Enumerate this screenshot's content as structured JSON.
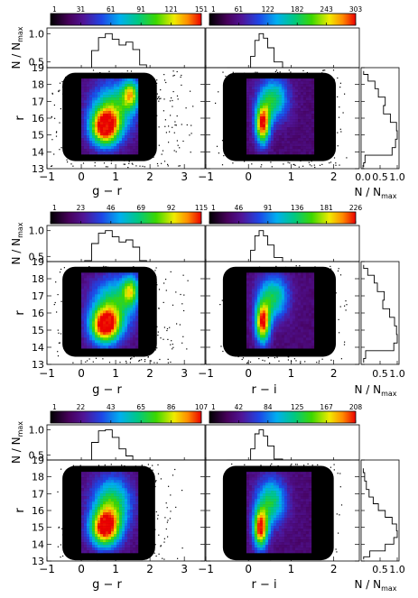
{
  "chart_data": {
    "type": "heatmap",
    "axis_labels": {
      "y_top": "N / N",
      "y_top_sub": "max",
      "y_main": "r",
      "x_right": "N / N",
      "x_right_sub": "max"
    },
    "y_top_ticks": [
      "0.5",
      "1.0"
    ],
    "y_top_ticks_vals": [
      0.5,
      1.0
    ],
    "y_ticks": [
      "13",
      "14",
      "15",
      "16",
      "17",
      "18",
      "19"
    ],
    "y_range": [
      13,
      19
    ],
    "rows": [
      {
        "panels": [
          {
            "xlabel": "g − r",
            "x_range": [
              -1,
              3.6
            ],
            "x_ticks": [
              "−1",
              "0",
              "1",
              "2",
              "3"
            ],
            "x_tick_vals": [
              -1,
              0,
              1,
              2,
              3
            ],
            "colorbar_ticks": [
              "1",
              "31",
              "61",
              "91",
              "121",
              "151"
            ],
            "colorbar_max": 151,
            "hist_x": [
              -0.6,
              -0.3,
              0,
              0.2,
              0.4,
              0.6,
              0.8,
              1.0,
              1.2,
              1.4,
              1.6,
              1.8,
              2.0,
              2.3,
              2.6,
              3.0
            ],
            "hist_y": [
              0.0,
              0.03,
              0.15,
              0.4,
              0.7,
              0.93,
              1.0,
              0.9,
              0.8,
              0.85,
              0.72,
              0.45,
              0.22,
              0.08,
              0.02,
              0.0
            ],
            "density": [
              {
                "x": 0.65,
                "y": 15.5,
                "sx": 0.3,
                "sy": 0.75,
                "w": 1.0
              },
              {
                "x": 1.4,
                "y": 17.5,
                "sx": 0.18,
                "sy": 0.6,
                "w": 0.65
              },
              {
                "x": 0.9,
                "y": 16.7,
                "sx": 0.45,
                "sy": 1.1,
                "w": 0.55
              }
            ],
            "core": {
              "x0": 0.0,
              "x1": 1.65,
              "y0": 14.0,
              "y1": 18.35
            },
            "halo": {
              "x0": -0.9,
              "x1": 3.4,
              "y0": 13.1,
              "y1": 18.9
            }
          },
          {
            "xlabel": "",
            "x_range": [
              -1,
              2.6
            ],
            "x_ticks": [
              "−1",
              "0",
              "1",
              "2"
            ],
            "x_tick_vals": [
              -1,
              0,
              1,
              2
            ],
            "colorbar_ticks": [
              "1",
              "61",
              "122",
              "182",
              "243",
              "303"
            ],
            "colorbar_max": 303,
            "hist_x": [
              -0.5,
              -0.2,
              0,
              0.1,
              0.2,
              0.3,
              0.4,
              0.5,
              0.7,
              0.9,
              1.1,
              1.3,
              1.6,
              2.0,
              2.4
            ],
            "hist_y": [
              0.0,
              0.05,
              0.3,
              0.6,
              0.88,
              1.0,
              0.92,
              0.75,
              0.5,
              0.32,
              0.18,
              0.1,
              0.04,
              0.01,
              0.0
            ],
            "density": [
              {
                "x": 0.3,
                "y": 15.7,
                "sx": 0.12,
                "sy": 0.8,
                "w": 1.0
              },
              {
                "x": 0.55,
                "y": 17.2,
                "sx": 0.25,
                "sy": 0.9,
                "w": 0.55
              }
            ],
            "core": {
              "x0": -0.05,
              "x1": 1.5,
              "y0": 14.0,
              "y1": 18.35
            },
            "halo": {
              "x0": -0.8,
              "x1": 2.3,
              "y0": 13.1,
              "y1": 18.9
            }
          }
        ],
        "side_hist_ticks": [
          "0.0",
          "0.5",
          "1.0"
        ],
        "side_hist_tick_vals": [
          0.0,
          0.5,
          1.0
        ],
        "side_hist_r": [
          13.1,
          13.6,
          14.0,
          14.5,
          15.0,
          15.5,
          16.0,
          16.5,
          17.0,
          17.5,
          18.0,
          18.4,
          18.8
        ],
        "side_hist_n": [
          0.02,
          0.06,
          0.85,
          0.95,
          1.0,
          0.98,
          0.8,
          0.6,
          0.65,
          0.45,
          0.35,
          0.15,
          0.02
        ]
      },
      {
        "panels": [
          {
            "xlabel": "g − r",
            "x_range": [
              -1,
              3.6
            ],
            "x_ticks": [
              "−1",
              "0",
              "1",
              "2",
              "3"
            ],
            "x_tick_vals": [
              -1,
              0,
              1,
              2,
              3
            ],
            "colorbar_ticks": [
              "1",
              "23",
              "46",
              "69",
              "92",
              "115"
            ],
            "colorbar_max": 115,
            "hist_x": [
              -0.6,
              -0.3,
              0,
              0.2,
              0.4,
              0.6,
              0.8,
              1.0,
              1.2,
              1.4,
              1.6,
              1.8,
              2.0,
              2.3,
              2.6,
              3.0
            ],
            "hist_y": [
              0.0,
              0.03,
              0.15,
              0.42,
              0.75,
              0.95,
              1.0,
              0.88,
              0.78,
              0.82,
              0.68,
              0.42,
              0.2,
              0.07,
              0.02,
              0.0
            ],
            "density": [
              {
                "x": 0.65,
                "y": 15.3,
                "sx": 0.3,
                "sy": 0.7,
                "w": 1.0
              },
              {
                "x": 1.4,
                "y": 17.4,
                "sx": 0.18,
                "sy": 0.6,
                "w": 0.6
              },
              {
                "x": 0.9,
                "y": 16.6,
                "sx": 0.45,
                "sy": 1.1,
                "w": 0.55
              }
            ],
            "core": {
              "x0": 0.0,
              "x1": 1.65,
              "y0": 14.0,
              "y1": 18.35
            },
            "halo": {
              "x0": -0.8,
              "x1": 3.2,
              "y0": 13.1,
              "y1": 18.8
            }
          },
          {
            "xlabel": "r − i",
            "x_range": [
              -1,
              2.6
            ],
            "x_ticks": [
              "−1",
              "0",
              "1",
              "2"
            ],
            "x_tick_vals": [
              -1,
              0,
              1,
              2
            ],
            "colorbar_ticks": [
              "1",
              "46",
              "91",
              "136",
              "181",
              "226"
            ],
            "colorbar_max": 226,
            "hist_x": [
              -0.5,
              -0.2,
              0,
              0.1,
              0.2,
              0.3,
              0.4,
              0.5,
              0.7,
              0.9,
              1.1,
              1.3,
              1.6,
              2.0,
              2.4
            ],
            "hist_y": [
              0.0,
              0.05,
              0.32,
              0.62,
              0.9,
              1.0,
              0.9,
              0.72,
              0.48,
              0.3,
              0.17,
              0.09,
              0.04,
              0.01,
              0.0
            ],
            "density": [
              {
                "x": 0.3,
                "y": 15.5,
                "sx": 0.12,
                "sy": 0.8,
                "w": 1.0
              },
              {
                "x": 0.55,
                "y": 17.0,
                "sx": 0.25,
                "sy": 0.9,
                "w": 0.55
              }
            ],
            "core": {
              "x0": -0.05,
              "x1": 1.5,
              "y0": 14.0,
              "y1": 18.35
            },
            "halo": {
              "x0": -0.7,
              "x1": 2.3,
              "y0": 13.1,
              "y1": 18.8
            }
          }
        ],
        "side_hist_ticks": [
          "0.5",
          "1.0"
        ],
        "side_hist_tick_vals": [
          0.5,
          1.0
        ],
        "side_hist_r": [
          13.1,
          13.6,
          14.0,
          14.5,
          15.0,
          15.5,
          16.0,
          16.5,
          17.0,
          17.5,
          18.0,
          18.4,
          18.8
        ],
        "side_hist_n": [
          0.02,
          0.08,
          0.9,
          1.0,
          0.98,
          0.92,
          0.78,
          0.58,
          0.62,
          0.42,
          0.33,
          0.14,
          0.02
        ]
      },
      {
        "panels": [
          {
            "xlabel": "g − r",
            "x_range": [
              -1,
              3.6
            ],
            "x_ticks": [
              "−1",
              "0",
              "1",
              "2",
              "3"
            ],
            "x_tick_vals": [
              -1,
              0,
              1,
              2,
              3
            ],
            "colorbar_ticks": [
              "1",
              "22",
              "43",
              "65",
              "86",
              "107"
            ],
            "colorbar_max": 107,
            "hist_x": [
              -0.6,
              -0.3,
              0,
              0.2,
              0.4,
              0.6,
              0.8,
              1.0,
              1.2,
              1.4,
              1.6,
              1.8,
              2.0,
              2.3,
              2.6,
              3.0
            ],
            "hist_y": [
              0.0,
              0.03,
              0.12,
              0.38,
              0.75,
              0.98,
              1.0,
              0.85,
              0.62,
              0.48,
              0.35,
              0.22,
              0.12,
              0.05,
              0.02,
              0.0
            ],
            "density": [
              {
                "x": 0.65,
                "y": 15.0,
                "sx": 0.3,
                "sy": 0.75,
                "w": 1.0
              },
              {
                "x": 0.85,
                "y": 16.5,
                "sx": 0.4,
                "sy": 1.1,
                "w": 0.6
              }
            ],
            "core": {
              "x0": 0.0,
              "x1": 1.6,
              "y0": 13.6,
              "y1": 18.3
            },
            "halo": {
              "x0": -0.7,
              "x1": 3.0,
              "y0": 13.1,
              "y1": 18.8
            }
          },
          {
            "xlabel": "r − i",
            "x_range": [
              -1,
              2.6
            ],
            "x_ticks": [
              "−1",
              "0",
              "1",
              "2"
            ],
            "x_tick_vals": [
              -1,
              0,
              1,
              2
            ],
            "colorbar_ticks": [
              "1",
              "42",
              "84",
              "125",
              "167",
              "208"
            ],
            "colorbar_max": 208,
            "hist_x": [
              -0.5,
              -0.2,
              0,
              0.1,
              0.2,
              0.3,
              0.4,
              0.5,
              0.7,
              0.9,
              1.1,
              1.3,
              1.6,
              2.0,
              2.4
            ],
            "hist_y": [
              0.0,
              0.04,
              0.3,
              0.62,
              0.92,
              1.0,
              0.88,
              0.68,
              0.42,
              0.25,
              0.13,
              0.07,
              0.03,
              0.01,
              0.0
            ],
            "density": [
              {
                "x": 0.25,
                "y": 15.0,
                "sx": 0.12,
                "sy": 0.8,
                "w": 1.0
              },
              {
                "x": 0.5,
                "y": 16.6,
                "sx": 0.25,
                "sy": 1.0,
                "w": 0.55
              }
            ],
            "core": {
              "x0": -0.05,
              "x1": 1.45,
              "y0": 13.6,
              "y1": 18.3
            },
            "halo": {
              "x0": -0.6,
              "x1": 2.2,
              "y0": 13.1,
              "y1": 18.8
            }
          }
        ],
        "side_hist_ticks": [
          "0.5",
          "1.0"
        ],
        "side_hist_tick_vals": [
          0.5,
          1.0
        ],
        "side_hist_r": [
          13.1,
          13.4,
          13.8,
          14.2,
          14.6,
          15.0,
          15.4,
          15.8,
          16.2,
          16.6,
          17.0,
          17.5,
          18.0,
          18.5
        ],
        "side_hist_n": [
          0.02,
          0.2,
          0.65,
          0.9,
          1.0,
          0.98,
          0.85,
          0.65,
          0.45,
          0.3,
          0.18,
          0.1,
          0.05,
          0.01
        ]
      }
    ]
  }
}
